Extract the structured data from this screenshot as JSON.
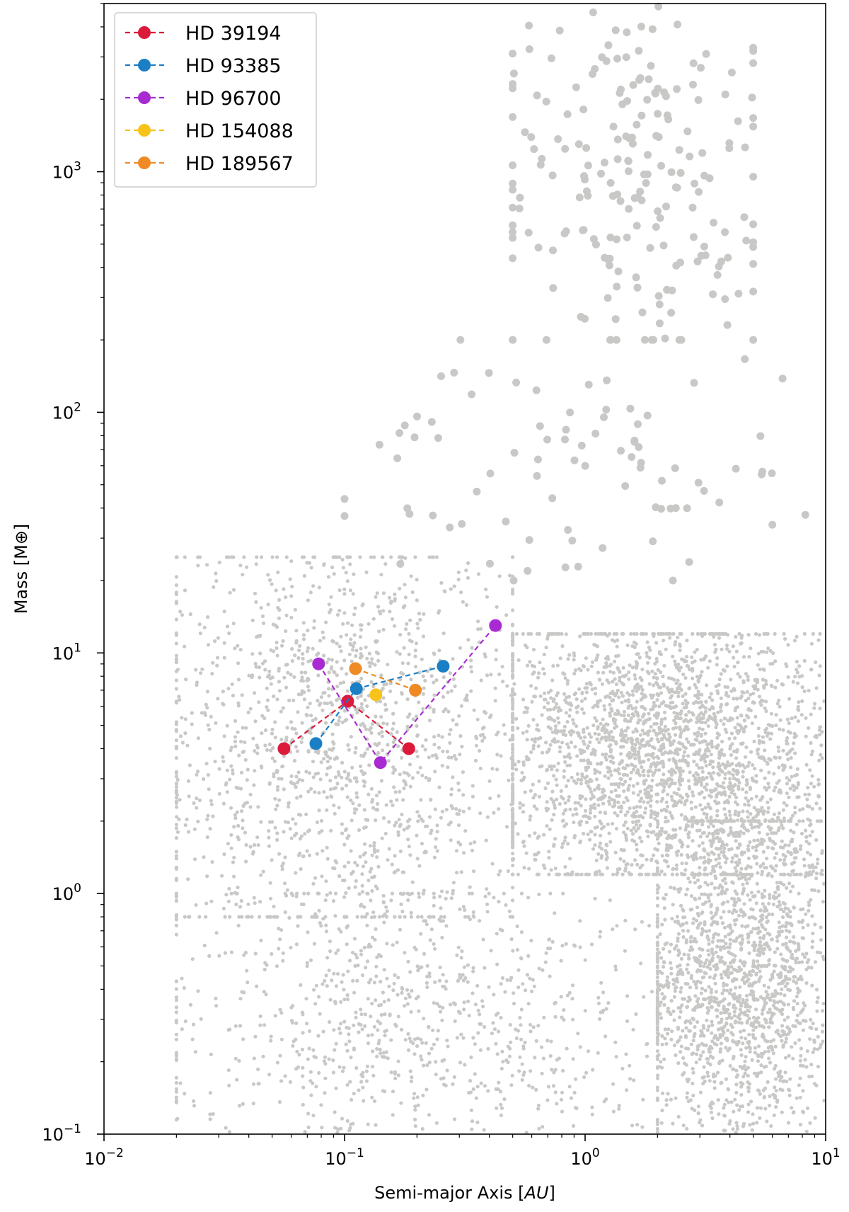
{
  "chart_data": {
    "type": "scatter",
    "title": "",
    "xlabel": "Semi-major Axis [AU]",
    "xlabel_plain": "Semi-major Axis [",
    "xlabel_italic": "AU",
    "xlabel_close": "]",
    "ylabel": "Mass [M⊕]",
    "xscale": "log",
    "yscale": "log",
    "xlim": [
      0.01,
      10
    ],
    "ylim": [
      0.1,
      5000
    ],
    "grid": false,
    "legend_position": "top-left",
    "x_ticks": [
      {
        "value": 0.01,
        "base": "10",
        "exp": "−2"
      },
      {
        "value": 0.1,
        "base": "10",
        "exp": "−1"
      },
      {
        "value": 1,
        "base": "10",
        "exp": "0"
      },
      {
        "value": 10,
        "base": "10",
        "exp": "1"
      }
    ],
    "y_ticks": [
      {
        "value": 0.1,
        "base": "10",
        "exp": "−1"
      },
      {
        "value": 1,
        "base": "10",
        "exp": "0"
      },
      {
        "value": 10,
        "base": "10",
        "exp": "1"
      },
      {
        "value": 100,
        "base": "10",
        "exp": "2"
      },
      {
        "value": 1000,
        "base": "10",
        "exp": "3"
      }
    ],
    "background_population": {
      "color": "#c8c9c7",
      "distribution": [
        {
          "n": 2600,
          "x_range": [
            0.5,
            10
          ],
          "y_range": [
            1.2,
            12
          ],
          "size": "small"
        },
        {
          "n": 1800,
          "x_range": [
            2,
            10
          ],
          "y_range": [
            0.1,
            2
          ],
          "size": "small"
        },
        {
          "n": 1500,
          "x_range": [
            0.02,
            0.5
          ],
          "y_range": [
            0.8,
            25
          ],
          "size": "small"
        },
        {
          "n": 900,
          "x_range": [
            0.02,
            2
          ],
          "y_range": [
            0.1,
            1
          ],
          "size": "small"
        },
        {
          "n": 220,
          "x_range": [
            0.5,
            5
          ],
          "y_range": [
            200,
            5000
          ],
          "size": "large"
        },
        {
          "n": 90,
          "x_range": [
            0.1,
            10
          ],
          "y_range": [
            20,
            200
          ],
          "size": "large"
        }
      ]
    },
    "series": [
      {
        "name": "HD 39194",
        "color": "#dc1a3a",
        "points": [
          [
            0.056,
            4.0
          ],
          [
            0.103,
            6.3
          ],
          [
            0.185,
            4.0
          ]
        ]
      },
      {
        "name": "HD 93385",
        "color": "#1a7fc5",
        "points": [
          [
            0.076,
            4.2
          ],
          [
            0.112,
            7.1
          ],
          [
            0.257,
            8.8
          ]
        ]
      },
      {
        "name": "HD 96700",
        "color": "#a82ad3",
        "points": [
          [
            0.078,
            9.0
          ],
          [
            0.141,
            3.5
          ],
          [
            0.424,
            13.0
          ]
        ]
      },
      {
        "name": "HD 154088",
        "color": "#f7c31a",
        "points": [
          [
            0.135,
            6.7
          ]
        ]
      },
      {
        "name": "HD 189567",
        "color": "#f08a24",
        "points": [
          [
            0.111,
            8.6
          ],
          [
            0.197,
            7.0
          ]
        ]
      }
    ]
  }
}
